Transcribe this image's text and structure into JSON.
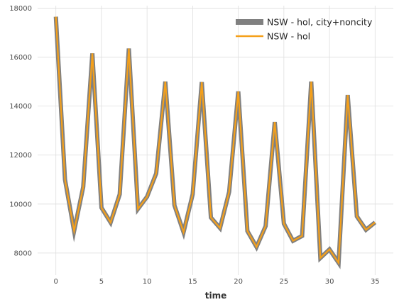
{
  "chart_data": {
    "type": "line",
    "title": "",
    "xlabel": "time",
    "ylabel": "",
    "xlim": [
      -2,
      37
    ],
    "ylim": [
      7100,
      18100
    ],
    "x_ticks": [
      0,
      5,
      10,
      15,
      20,
      25,
      30,
      35
    ],
    "y_ticks": [
      8000,
      10000,
      12000,
      14000,
      16000,
      18000
    ],
    "grid": true,
    "legend_position": "top-right",
    "x": [
      0,
      1,
      2,
      3,
      4,
      5,
      6,
      7,
      8,
      9,
      10,
      11,
      12,
      13,
      14,
      15,
      16,
      17,
      18,
      19,
      20,
      21,
      22,
      23,
      24,
      25,
      26,
      27,
      28,
      29,
      30,
      31,
      32,
      33,
      34,
      35
    ],
    "series": [
      {
        "name": "NSW - hol, city+noncity",
        "color": "#808080",
        "style": "thick",
        "values": [
          17650,
          11000,
          8900,
          10700,
          16150,
          9850,
          9250,
          10400,
          16350,
          9800,
          10300,
          11250,
          15000,
          9950,
          8850,
          10400,
          14980,
          9450,
          9020,
          10500,
          14600,
          8900,
          8250,
          9100,
          13350,
          9200,
          8500,
          8700,
          15000,
          7800,
          8150,
          7600,
          14450,
          9500,
          8950,
          9250
        ]
      },
      {
        "name": "NSW - hol",
        "color": "#f5a01a",
        "style": "thin",
        "values": [
          17650,
          11000,
          8900,
          10700,
          16150,
          9850,
          9250,
          10400,
          16350,
          9800,
          10300,
          11250,
          15000,
          9950,
          8850,
          10400,
          14980,
          9450,
          9020,
          10500,
          14600,
          8900,
          8250,
          9100,
          13350,
          9200,
          8500,
          8700,
          15000,
          7800,
          8150,
          7600,
          14450,
          9500,
          8950,
          9250
        ]
      }
    ]
  }
}
